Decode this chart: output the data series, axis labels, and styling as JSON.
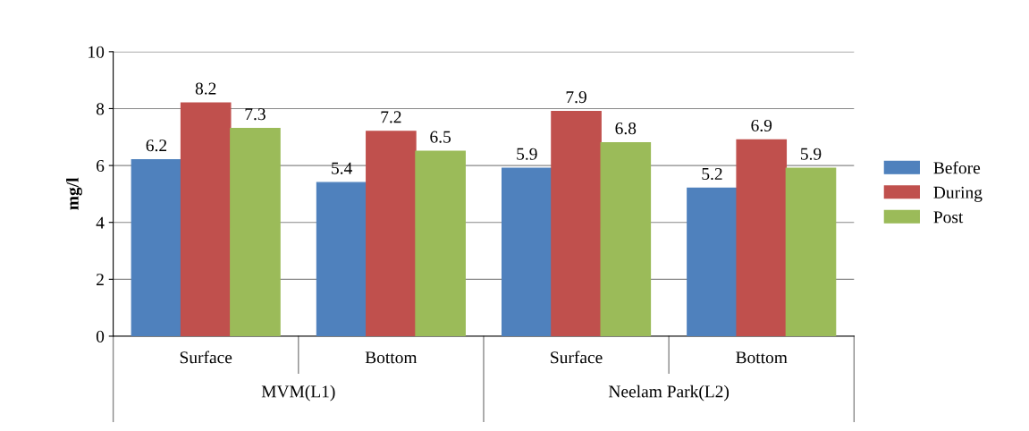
{
  "chart_data": {
    "type": "bar",
    "ylabel": "mg/l",
    "categories": [
      "Surface",
      "Bottom",
      "Surface",
      "Bottom"
    ],
    "series": [
      {
        "name": "Before",
        "color": "#4f81bd",
        "values": [
          6.2,
          5.4,
          5.9,
          5.2
        ]
      },
      {
        "name": "During",
        "color": "#c0504d",
        "values": [
          8.2,
          7.2,
          7.9,
          6.9
        ]
      },
      {
        "name": "Post",
        "color": "#9bbb59",
        "values": [
          7.3,
          6.5,
          6.8,
          5.9
        ]
      }
    ],
    "annotations": [
      "MVM(L1)",
      "Neelam Park(L2)"
    ],
    "ylim": [
      0,
      10
    ],
    "yticks": [
      0,
      2,
      4,
      6,
      8,
      10
    ],
    "grid": "y",
    "legend": "right",
    "data_labels": true
  }
}
